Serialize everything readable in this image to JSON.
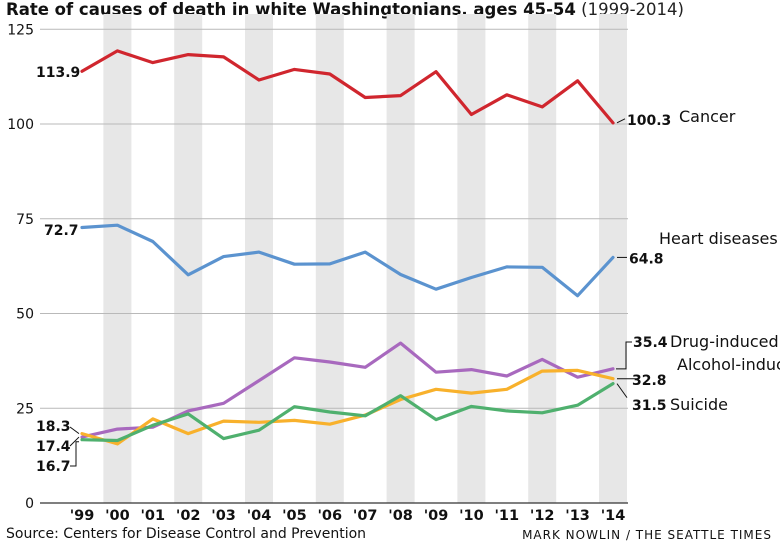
{
  "title": "Rate of causes of death in white Washingtonians, ages 45-54",
  "subtitle": "(1999-2014)",
  "source": "Source: Centers for Disease Control and Prevention",
  "credit": "MARK NOWLIN / THE SEATTLE TIMES",
  "chart_data": {
    "type": "line",
    "title": "Rate of causes of death in white Washingtonians, ages 45-54",
    "subtitle": "(1999-2014)",
    "xlabel": "",
    "ylabel": "",
    "categories": [
      "'99",
      "'00",
      "'01",
      "'02",
      "'03",
      "'04",
      "'05",
      "'06",
      "'07",
      "'08",
      "'09",
      "'10",
      "'11",
      "'12",
      "'13",
      "'14"
    ],
    "ylim": [
      0,
      125
    ],
    "yticks": [
      0,
      25,
      50,
      75,
      100,
      125
    ],
    "grid": "horizontal",
    "alternating_column_shading": true,
    "series": [
      {
        "name": "Cancer",
        "color": "#d0262e",
        "start_label": "113.9",
        "end_label": "100.3",
        "values": [
          113.9,
          119.3,
          116.2,
          118.3,
          117.7,
          111.6,
          114.4,
          113.2,
          107.0,
          107.5,
          113.8,
          102.5,
          107.7,
          104.5,
          111.4,
          100.3
        ]
      },
      {
        "name": "Heart diseases",
        "color": "#5b93cf",
        "start_label": "72.7",
        "end_label": "64.8",
        "values": [
          72.7,
          73.3,
          69.0,
          60.2,
          65.0,
          66.2,
          63.0,
          63.1,
          66.2,
          60.3,
          56.4,
          59.5,
          62.3,
          62.2,
          54.7,
          64.8
        ]
      },
      {
        "name": "Drug-induced",
        "color": "#a869be",
        "start_label": "17.4",
        "end_label": "35.4",
        "values": [
          17.4,
          19.5,
          20.0,
          24.3,
          26.3,
          32.3,
          38.3,
          37.2,
          35.8,
          42.2,
          34.5,
          35.2,
          33.5,
          37.9,
          33.2,
          35.4
        ]
      },
      {
        "name": "Alcohol-induced",
        "color": "#f8b12c",
        "start_label": "18.3",
        "end_label": "32.8",
        "values": [
          18.3,
          15.6,
          22.2,
          18.3,
          21.6,
          21.3,
          21.8,
          20.8,
          23.2,
          27.3,
          30.0,
          29.0,
          30.0,
          34.8,
          35.0,
          32.8
        ]
      },
      {
        "name": "Suicide",
        "color": "#4fb06e",
        "start_label": "16.7",
        "end_label": "31.5",
        "values": [
          16.7,
          16.5,
          20.5,
          23.5,
          17.0,
          19.2,
          25.4,
          24.0,
          23.0,
          28.3,
          22.0,
          25.5,
          24.3,
          23.8,
          25.8,
          31.5
        ]
      }
    ]
  }
}
